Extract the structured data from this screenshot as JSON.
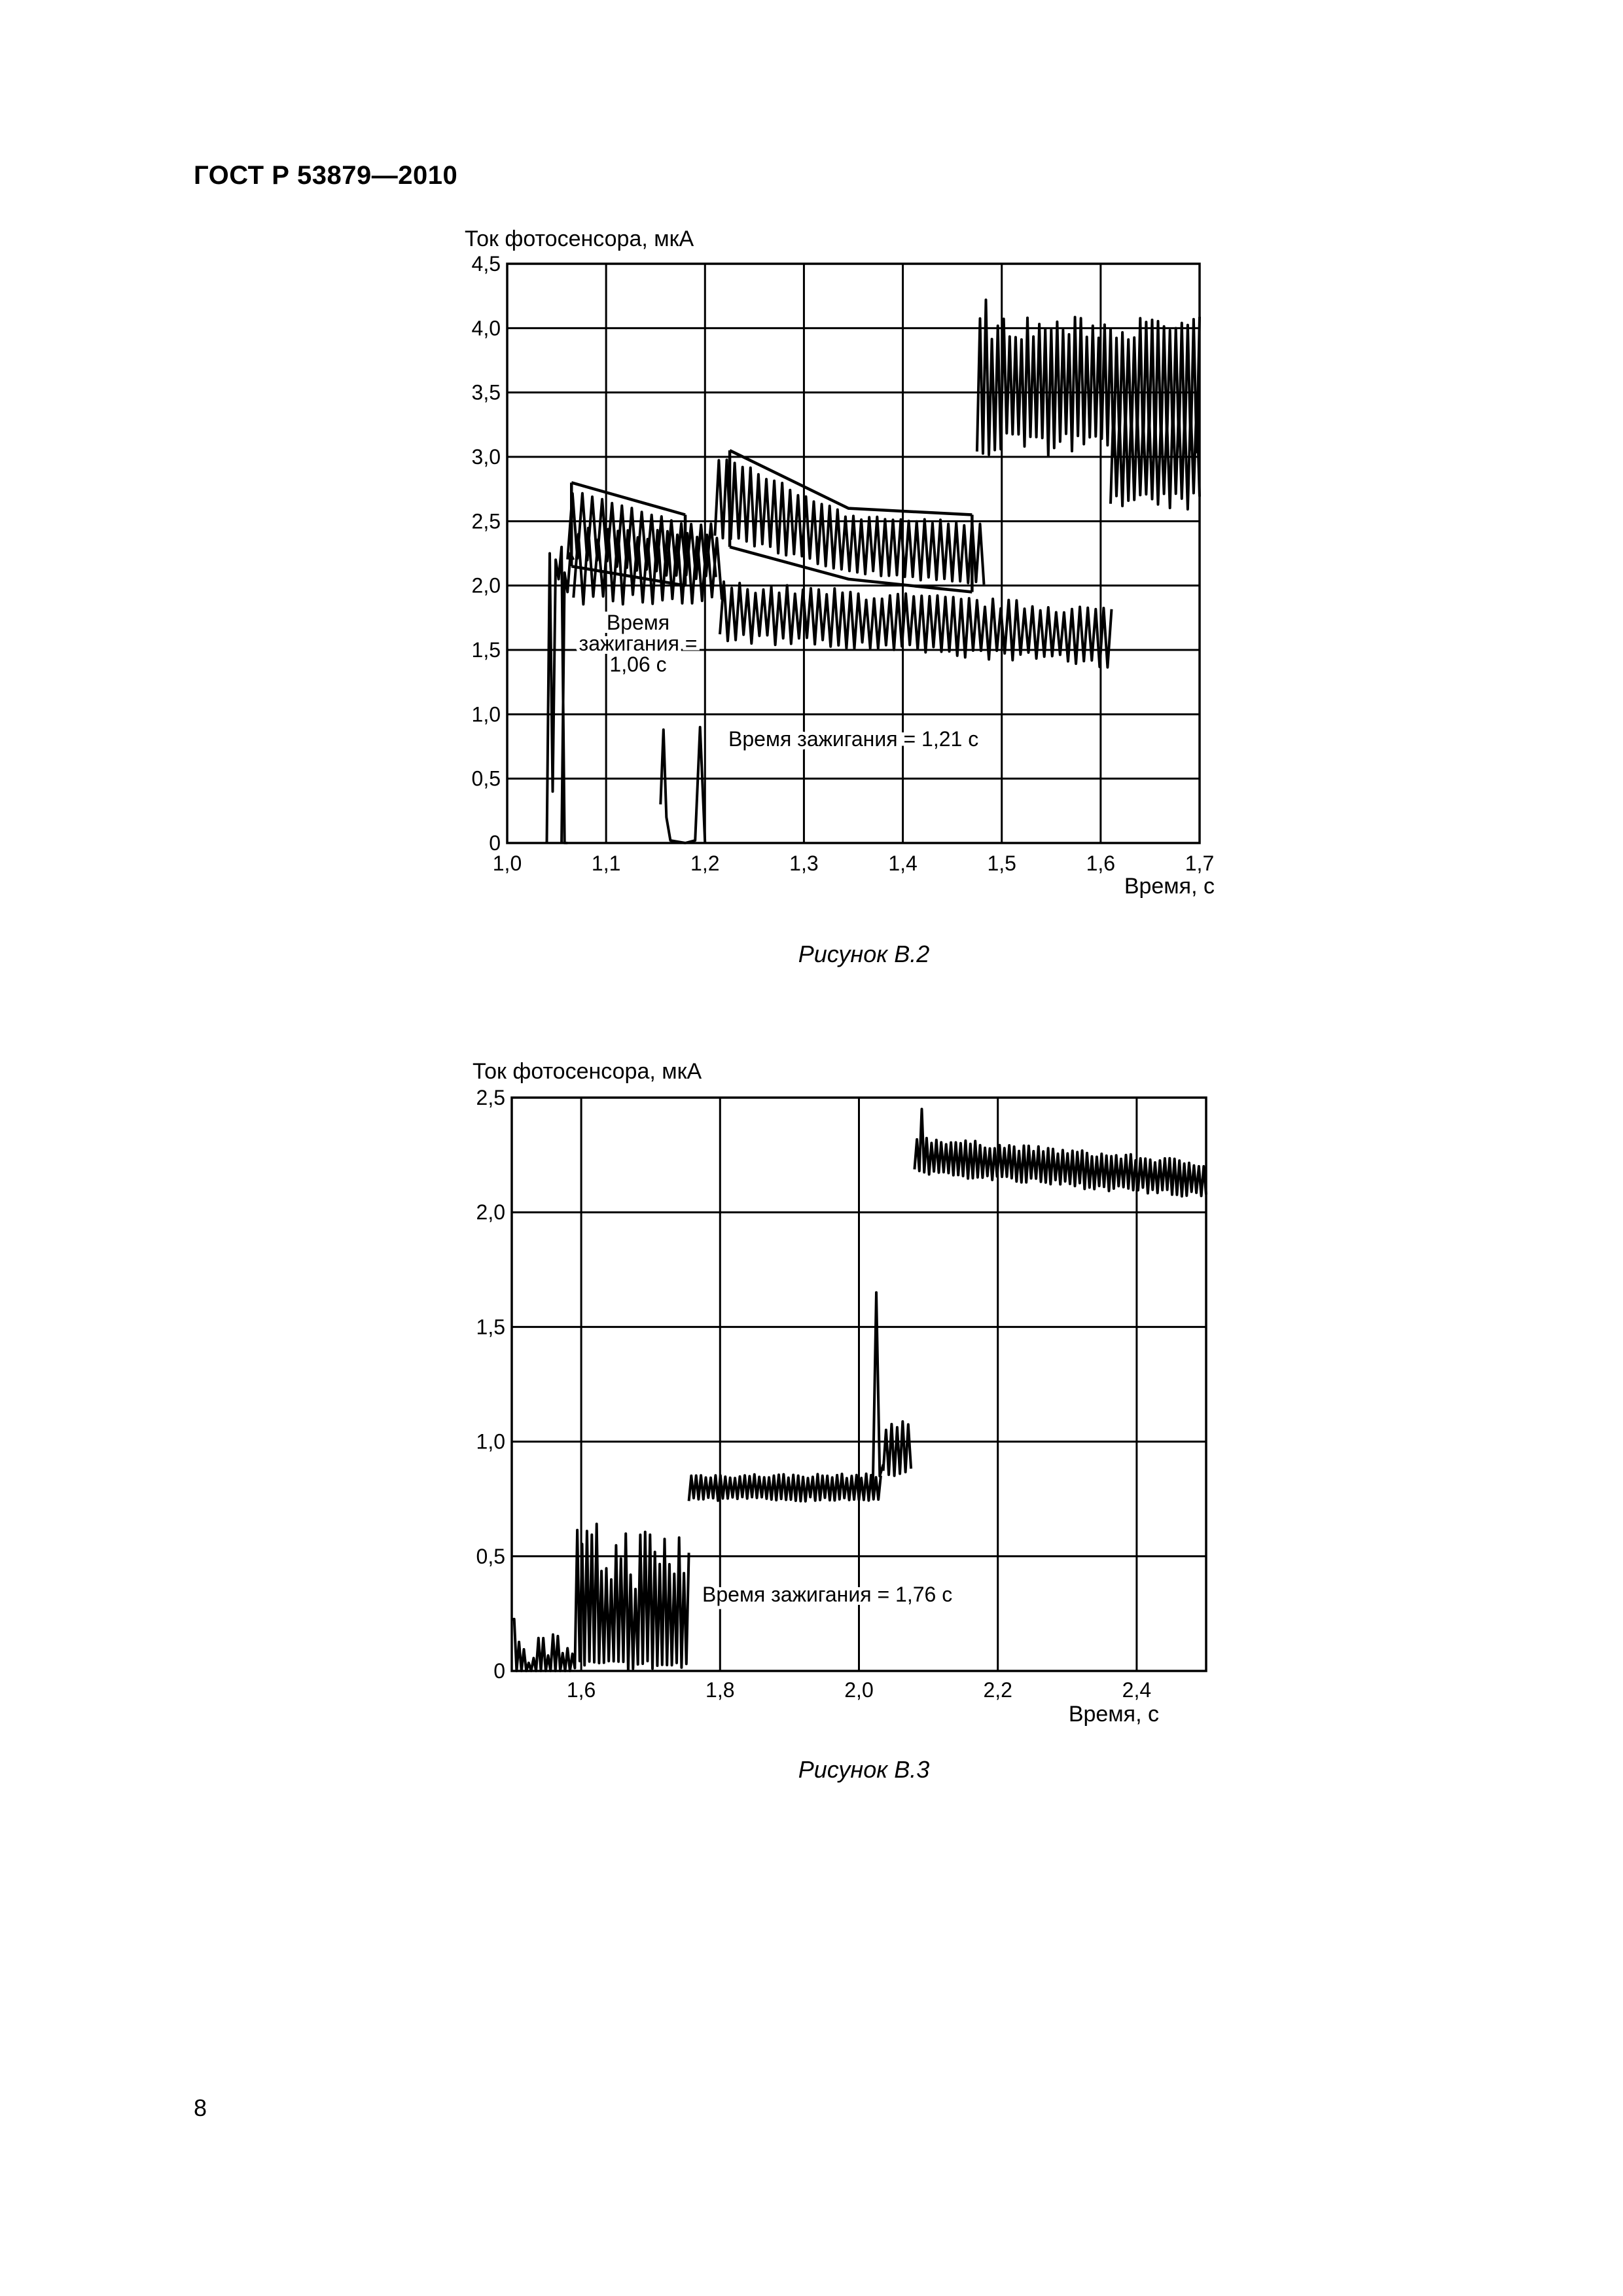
{
  "header": {
    "title": "ГОСТ Р 53879—2010"
  },
  "page": {
    "number": "8"
  },
  "figures": [
    {
      "caption": "Рисунок В.2"
    },
    {
      "caption": "Рисунок В.3"
    }
  ],
  "chart_data": [
    {
      "type": "line",
      "title": "",
      "ylabel": "Ток фотосенсора, мкА",
      "xlabel": "Время, с",
      "xlim": [
        1.0,
        1.7
      ],
      "ylim": [
        0,
        4.5
      ],
      "grid": true,
      "x_ticks": [
        1.0,
        1.1,
        1.2,
        1.3,
        1.4,
        1.5,
        1.6,
        1.7
      ],
      "x_tick_labels": [
        "1,0",
        "1,1",
        "1,2",
        "1,3",
        "1,4",
        "1,5",
        "1,6",
        "1,7"
      ],
      "y_ticks": [
        0,
        0.5,
        1.0,
        1.5,
        2.0,
        2.5,
        3.0,
        3.5,
        4.0,
        4.5
      ],
      "y_tick_labels": [
        "0",
        "0,5",
        "1,0",
        "1,5",
        "2,0",
        "2,5",
        "3,0",
        "3,5",
        "4,0",
        "4,5"
      ],
      "annotations": [
        {
          "lines": [
            "Время",
            "зажигания =",
            "1,06 с"
          ]
        },
        {
          "lines": [
            "Время зажигания = 1,21 с"
          ]
        }
      ],
      "series": [
        {
          "segments": [
            {
              "x": [
                1.04,
                1.043,
                1.046,
                1.049,
                1.052,
                1.055,
                1.058,
                1.061
              ],
              "y": [
                0,
                2.25,
                0.4,
                2.2,
                2.05,
                2.3,
                0,
                0
              ]
            },
            {
              "x_start": 1.061,
              "x_end": 1.21,
              "center": 2.35,
              "amplitude": 0.35,
              "period": 0.01,
              "envelope_top": [
                [
                  1.065,
                  2.8
                ],
                [
                  1.18,
                  2.55
                ]
              ],
              "envelope_bottom": [
                [
                  1.065,
                  2.15
                ],
                [
                  1.18,
                  2.0
                ]
              ]
            },
            {
              "x_start": 1.21,
              "x_end": 1.48,
              "center": 2.4,
              "amplitude": 0.35,
              "period": 0.008,
              "envelope_top": [
                [
                  1.225,
                  3.05
                ],
                [
                  1.345,
                  2.6
                ],
                [
                  1.47,
                  2.55
                ]
              ],
              "envelope_bottom": [
                [
                  1.225,
                  2.3
                ],
                [
                  1.345,
                  2.05
                ],
                [
                  1.47,
                  1.95
                ]
              ]
            },
            {
              "x_start": 1.475,
              "x_end": 1.7,
              "center": 3.55,
              "amplitude": 0.45,
              "period": 0.006,
              "peak": [
                1.485,
                4.22
              ]
            }
          ]
        },
        {
          "segments": [
            {
              "x": [
                1.055,
                1.058,
                1.061,
                1.064,
                1.067
              ],
              "y": [
                0,
                2.1,
                1.95,
                2.25,
                2.2
              ]
            },
            {
              "x_start": 1.067,
              "x_end": 1.215,
              "center": 2.15,
              "amplitude": 0.25,
              "period": 0.01
            },
            {
              "x": [
                1.155,
                1.158,
                1.161,
                1.165,
                1.18,
                1.19,
                1.195,
                1.2
              ],
              "y": [
                0.3,
                0.88,
                0.2,
                0.02,
                0,
                0.02,
                0.9,
                0
              ]
            },
            {
              "x_start": 1.215,
              "x_end": 1.61,
              "center": 1.8,
              "amplitude": 0.2,
              "period": 0.008,
              "drift_to": 1.6
            },
            {
              "x_start": 1.61,
              "x_end": 1.7,
              "center": 3.0,
              "amplitude": 0.35,
              "period": 0.006
            }
          ]
        }
      ]
    },
    {
      "type": "line",
      "title": "",
      "ylabel": "Ток фотосенсора, мкА",
      "xlabel": "Время, с",
      "xlim": [
        1.5,
        2.5
      ],
      "ylim": [
        0,
        2.5
      ],
      "grid": true,
      "x_ticks": [
        1.6,
        1.8,
        2.0,
        2.2,
        2.4
      ],
      "x_tick_labels": [
        "1,6",
        "1,8",
        "2,0",
        "2,2",
        "2,4"
      ],
      "y_ticks": [
        0,
        0.5,
        1.0,
        1.5,
        2.0,
        2.5
      ],
      "y_tick_labels": [
        "0",
        "0,5",
        "1,0",
        "1,5",
        "2,0",
        "2,5"
      ],
      "annotations": [
        {
          "lines": [
            "Время зажигания = 1,76 с"
          ]
        }
      ],
      "series": [
        {
          "segments": [
            {
              "x_start": 1.5,
              "x_end": 1.755,
              "pattern": "noisy-bursts",
              "max": 0.75
            },
            {
              "x_start": 1.755,
              "x_end": 2.03,
              "center": 0.8,
              "amplitude": 0.05,
              "period": 0.007
            },
            {
              "x": [
                2.02,
                2.025,
                2.03,
                2.035
              ],
              "y": [
                0.8,
                1.65,
                0.85,
                0.9
              ]
            },
            {
              "x_start": 2.035,
              "x_end": 2.075,
              "center": 0.97,
              "amplitude": 0.1,
              "period": 0.008
            },
            {
              "x_start": 2.08,
              "x_end": 2.5,
              "center": 2.25,
              "amplitude": 0.07,
              "period": 0.007,
              "drift_to": 2.14,
              "peak": [
                2.09,
                2.45
              ]
            }
          ]
        }
      ]
    }
  ]
}
